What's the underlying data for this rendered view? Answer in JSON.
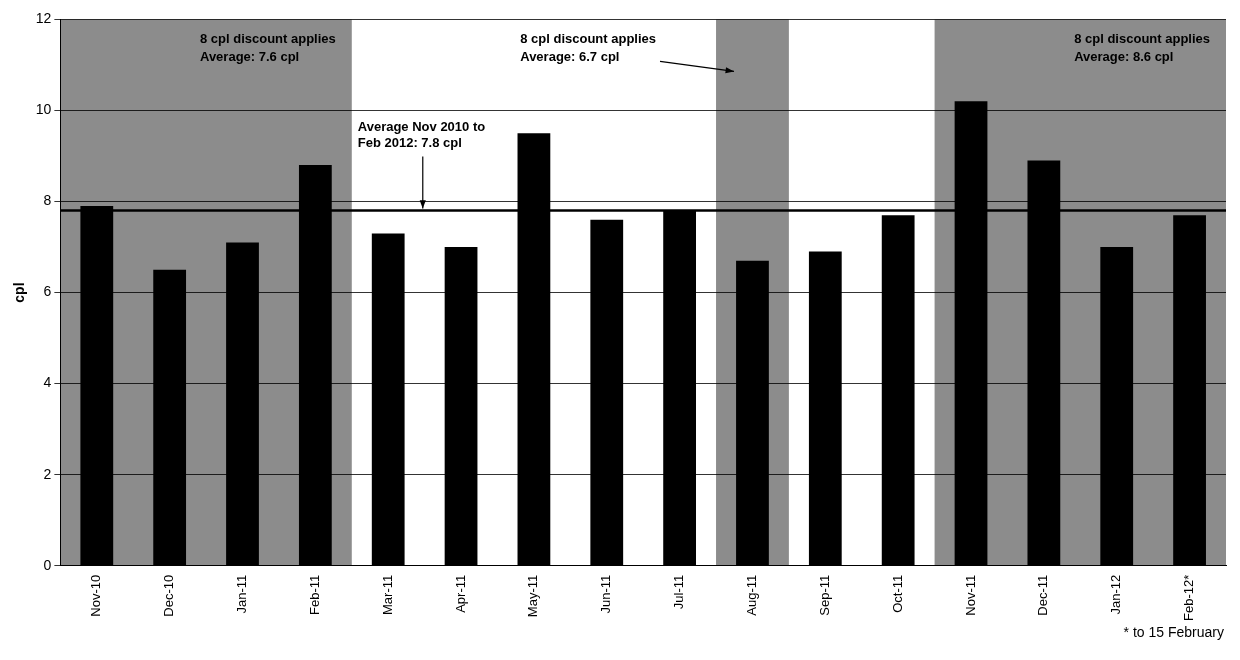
{
  "chart_data": {
    "type": "bar",
    "ylabel": "cpl",
    "categories": [
      "Nov-10",
      "Dec-10",
      "Jan-11",
      "Feb-11",
      "Mar-11",
      "Apr-11",
      "May-11",
      "Jun-11",
      "Jul-11",
      "Aug-11",
      "Sep-11",
      "Oct-11",
      "Nov-11",
      "Dec-11",
      "Jan-12",
      "Feb-12*"
    ],
    "values": [
      7.9,
      6.5,
      7.1,
      8.8,
      7.3,
      7.0,
      9.5,
      7.6,
      7.8,
      6.7,
      6.9,
      7.7,
      10.2,
      8.9,
      7.0,
      7.7
    ],
    "color": "#000000",
    "ylim": [
      0,
      12
    ],
    "yticks": [
      0,
      2,
      4,
      6,
      8,
      10,
      12
    ],
    "grid": "y",
    "legend": false,
    "bands": [
      {
        "axis": "x",
        "from": "Nov-10",
        "to": "Feb-11",
        "label": "8 cpl discount applies\nAverage: 7.6 cpl",
        "color": "#8c8c8c"
      },
      {
        "axis": "x",
        "from": "Aug-11",
        "to": "Aug-11",
        "label": "8 cpl discount applies\nAverage: 6.7 cpl",
        "color": "#8c8c8c"
      },
      {
        "axis": "x",
        "from": "Nov-11",
        "to": "Feb-12*",
        "label": "8 cpl discount applies\nAverage: 8.6 cpl",
        "color": "#8c8c8c"
      }
    ],
    "ref_lines": [
      {
        "axis": "y",
        "value": 7.8,
        "label": "Average Nov 2010 to\nFeb 2012: 7.8 cpl",
        "color": "#000000",
        "line_style": "solid"
      }
    ],
    "annotations": [
      "* to 15 February"
    ]
  }
}
